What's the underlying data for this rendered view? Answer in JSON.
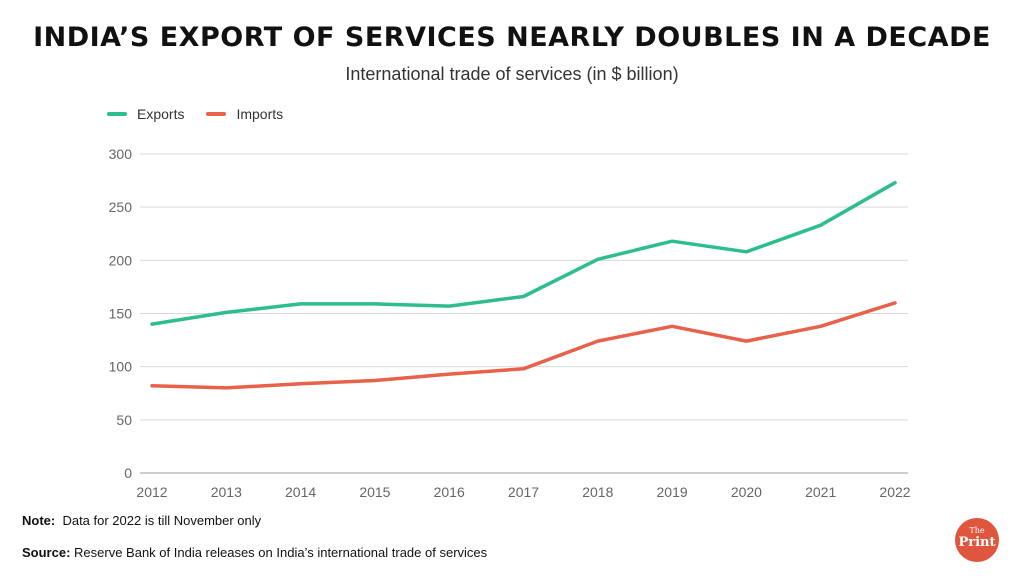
{
  "title": "INDIA’S EXPORT OF SERVICES NEARLY DOUBLES IN A DECADE",
  "subtitle": "International trade of services (in $ billion)",
  "note_label": "Note:",
  "note_text": "Data for 2022 is till November only",
  "source_label": "Source:",
  "source_text": "Reserve Bank of India releases on India’s international trade of services",
  "logo": {
    "the": "The",
    "print": "Print"
  },
  "colors": {
    "exports": "#2dbd8e",
    "imports": "#e8614a",
    "grid": "#d9d9d9"
  },
  "chart_data": {
    "type": "line",
    "x": [
      "2012",
      "2013",
      "2014",
      "2015",
      "2016",
      "2017",
      "2018",
      "2019",
      "2020",
      "2021",
      "2022"
    ],
    "series": [
      {
        "name": "Exports",
        "values": [
          140,
          151,
          159,
          159,
          157,
          166,
          201,
          218,
          208,
          233,
          273
        ]
      },
      {
        "name": "Imports",
        "values": [
          82,
          80,
          84,
          87,
          93,
          98,
          124,
          138,
          124,
          138,
          160
        ]
      }
    ],
    "ylim": [
      0,
      300
    ],
    "yticks": [
      "0",
      "50",
      "100",
      "150",
      "200",
      "250",
      "300"
    ],
    "grid": true,
    "legend_position": "top-left"
  }
}
